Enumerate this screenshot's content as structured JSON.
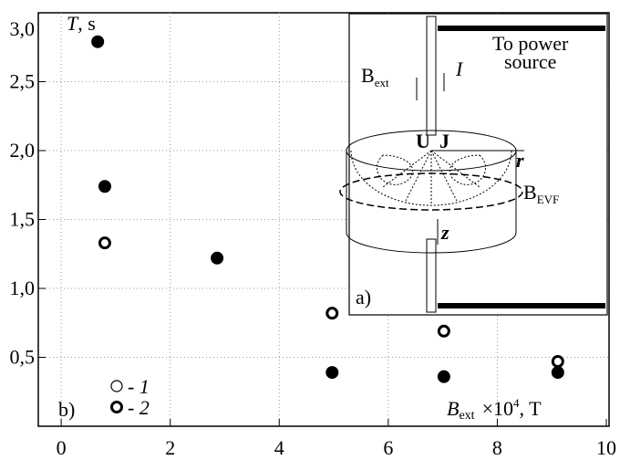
{
  "chart_data": {
    "type": "scatter",
    "y_label": {
      "symbol": "T",
      "unit": ", s"
    },
    "x_label": {
      "symbol": "B",
      "subscript": "ext",
      "factor": "×10",
      "power": "4",
      "unit": ", T"
    },
    "annotation": "b)",
    "series": [
      {
        "name": "- 1",
        "marker": "filled",
        "color": "#000000",
        "x": [
          0.67,
          0.8,
          2.86,
          4.97,
          7.02,
          9.11
        ],
        "values": [
          2.79,
          1.74,
          1.22,
          0.39,
          0.36,
          0.39
        ]
      },
      {
        "name": "- 2",
        "marker": "ring",
        "color": "#000000",
        "x": [
          0.8,
          4.97,
          7.02,
          9.11
        ],
        "values": [
          1.33,
          0.82,
          0.69,
          0.47
        ]
      }
    ],
    "xlim": [
      -0.42,
      10.05
    ],
    "ylim": [
      0,
      3
    ],
    "xticks": [
      0,
      2,
      4,
      6,
      8,
      10
    ],
    "yticks": [
      {
        "value": 0.5,
        "label": "0,5"
      },
      {
        "value": 1,
        "label": "1,0"
      },
      {
        "value": 1.5,
        "label": "1,5"
      },
      {
        "value": 2,
        "label": "2,0"
      },
      {
        "value": 2.5,
        "label": "2,5"
      },
      {
        "value": 3,
        "label": "3,0"
      }
    ],
    "grid": true,
    "inset": {
      "panel": "a)",
      "power_1": "To power",
      "power_2": "source",
      "b_ext": "B",
      "b_ext_sub": "ext",
      "current": "I",
      "u": "U",
      "j": "J",
      "r": "r",
      "b_evf": "B",
      "b_evf_sub": "EVF",
      "z": "z"
    }
  }
}
